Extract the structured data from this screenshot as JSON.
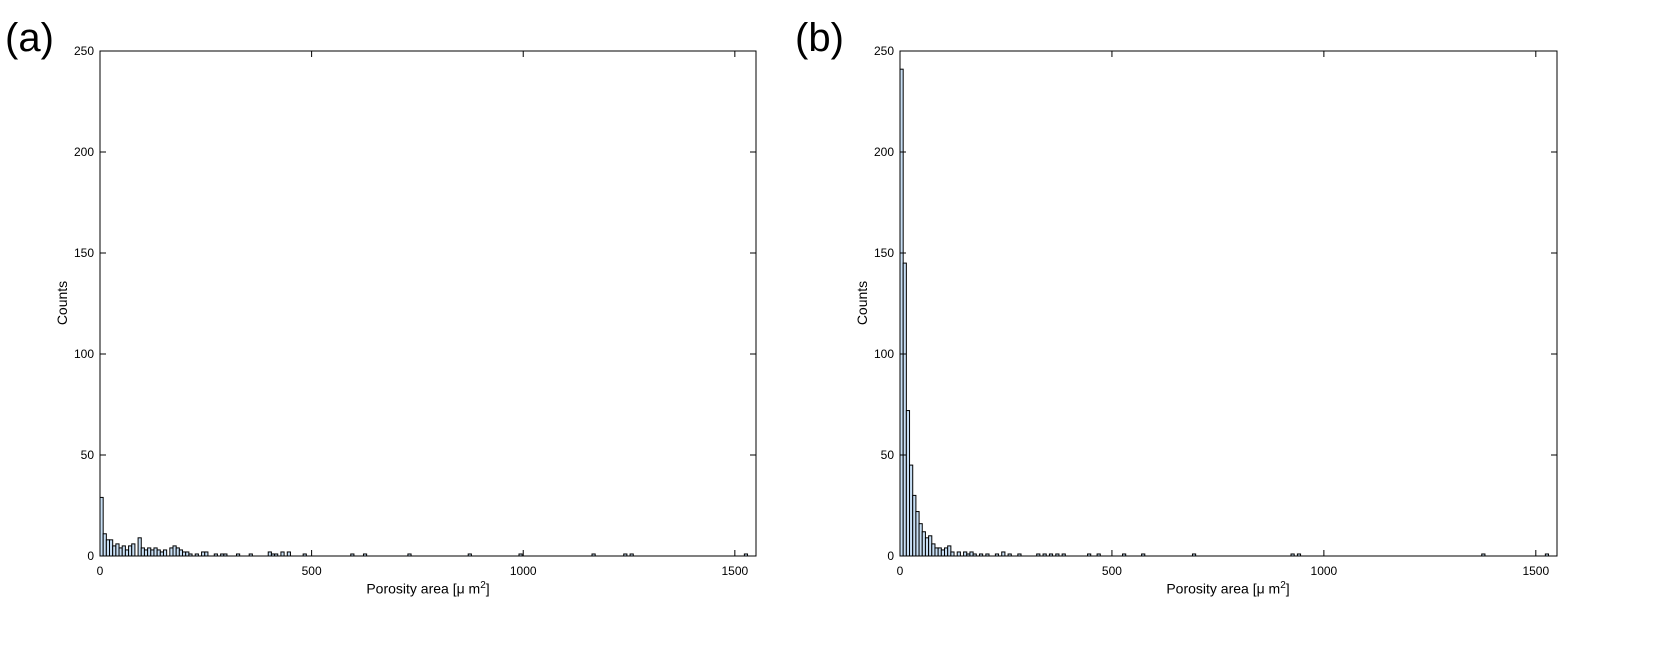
{
  "charts": [
    {
      "panel_label": "(a)",
      "ylabel": "Counts",
      "xlabel_main": "Porosity area [",
      "xlabel_mu": "μ",
      "xlabel_unit": " m",
      "xlabel_exp": "2",
      "xlabel_close": "]"
    },
    {
      "panel_label": "(b)",
      "ylabel": "Counts",
      "xlabel_main": "Porosity area [",
      "xlabel_mu": "μ",
      "xlabel_unit": " m",
      "xlabel_exp": "2",
      "xlabel_close": "]"
    }
  ],
  "colors": {
    "bar_fill": "#c8dff5",
    "bar_edge": "#000000",
    "axis": "#000000"
  },
  "chart_data": [
    {
      "type": "bar",
      "title": "(a)",
      "xlabel": "Porosity area [μ m²]",
      "ylabel": "Counts",
      "xlim": [
        0,
        1550
      ],
      "ylim": [
        0,
        250
      ],
      "xticks": [
        0,
        500,
        1000,
        1500
      ],
      "yticks": [
        0,
        50,
        100,
        150,
        200,
        250
      ],
      "grid": false,
      "bin_width": 7.5,
      "bins": [
        [
          3.75,
          29
        ],
        [
          11.25,
          11
        ],
        [
          18.75,
          8
        ],
        [
          26.25,
          8
        ],
        [
          33.75,
          5
        ],
        [
          41.25,
          6
        ],
        [
          48.75,
          4
        ],
        [
          56.25,
          5
        ],
        [
          63.75,
          3
        ],
        [
          71.25,
          5
        ],
        [
          78.75,
          6
        ],
        [
          93.75,
          9
        ],
        [
          101.25,
          4
        ],
        [
          108.75,
          3
        ],
        [
          116.25,
          4
        ],
        [
          123.75,
          3
        ],
        [
          131.25,
          4
        ],
        [
          138.75,
          3
        ],
        [
          146.25,
          2
        ],
        [
          153.75,
          3
        ],
        [
          168.75,
          4
        ],
        [
          176.25,
          5
        ],
        [
          183.75,
          4
        ],
        [
          191.25,
          3
        ],
        [
          198.75,
          2
        ],
        [
          206.25,
          2
        ],
        [
          213.75,
          1
        ],
        [
          228.75,
          1
        ],
        [
          243.75,
          2
        ],
        [
          251.25,
          2
        ],
        [
          273.75,
          1
        ],
        [
          288.75,
          1
        ],
        [
          296.25,
          1
        ],
        [
          326.25,
          1
        ],
        [
          356.25,
          1
        ],
        [
          401.25,
          2
        ],
        [
          408.75,
          1
        ],
        [
          416.25,
          1
        ],
        [
          431.25,
          2
        ],
        [
          446.25,
          2
        ],
        [
          483.75,
          1
        ],
        [
          596.25,
          1
        ],
        [
          626.25,
          1
        ],
        [
          731.25,
          1
        ],
        [
          873.75,
          1
        ],
        [
          993.75,
          1
        ],
        [
          1166.25,
          1
        ],
        [
          1241.25,
          1
        ],
        [
          1256.25,
          1
        ],
        [
          1526.25,
          1
        ]
      ]
    },
    {
      "type": "bar",
      "title": "(b)",
      "xlabel": "Porosity area [μ m²]",
      "ylabel": "Counts",
      "xlim": [
        0,
        1550
      ],
      "ylim": [
        0,
        250
      ],
      "xticks": [
        0,
        500,
        1000,
        1500
      ],
      "yticks": [
        0,
        50,
        100,
        150,
        200,
        250
      ],
      "grid": false,
      "bin_width": 7.5,
      "bins": [
        [
          3.75,
          241
        ],
        [
          11.25,
          145
        ],
        [
          18.75,
          72
        ],
        [
          26.25,
          45
        ],
        [
          33.75,
          30
        ],
        [
          41.25,
          22
        ],
        [
          48.75,
          16
        ],
        [
          56.25,
          12
        ],
        [
          63.75,
          9
        ],
        [
          71.25,
          10
        ],
        [
          78.75,
          6
        ],
        [
          86.25,
          4
        ],
        [
          93.75,
          4
        ],
        [
          101.25,
          3
        ],
        [
          108.75,
          4
        ],
        [
          116.25,
          5
        ],
        [
          123.75,
          2
        ],
        [
          138.75,
          2
        ],
        [
          153.75,
          2
        ],
        [
          161.25,
          1
        ],
        [
          168.75,
          2
        ],
        [
          176.25,
          1
        ],
        [
          191.25,
          1
        ],
        [
          206.25,
          1
        ],
        [
          228.75,
          1
        ],
        [
          243.75,
          2
        ],
        [
          258.75,
          1
        ],
        [
          281.75,
          1
        ],
        [
          326.25,
          1
        ],
        [
          341.25,
          1
        ],
        [
          356.25,
          1
        ],
        [
          371.25,
          1
        ],
        [
          386.25,
          1
        ],
        [
          446.25,
          1
        ],
        [
          468.75,
          1
        ],
        [
          528.75,
          1
        ],
        [
          573.75,
          1
        ],
        [
          693.75,
          1
        ],
        [
          926.25,
          1
        ],
        [
          941.25,
          1
        ],
        [
          1376.25,
          1
        ],
        [
          1526.25,
          1
        ]
      ]
    }
  ]
}
